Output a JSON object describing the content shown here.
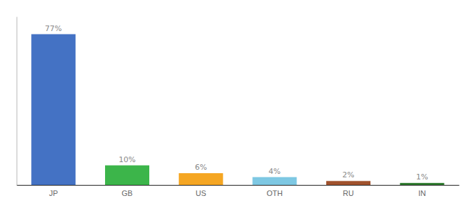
{
  "chart_data": {
    "type": "bar",
    "categories": [
      "JP",
      "GB",
      "US",
      "OTH",
      "RU",
      "IN"
    ],
    "values": [
      77,
      10,
      6,
      4,
      2,
      1
    ],
    "value_labels": [
      "77%",
      "10%",
      "6%",
      "4%",
      "2%",
      "1%"
    ],
    "colors": [
      "#4472C4",
      "#3CB54A",
      "#F5A623",
      "#7EC8E3",
      "#A0522D",
      "#2D7A2D"
    ],
    "ylim": [
      0,
      86
    ],
    "grid": false,
    "data_labels": true,
    "tick_labels": "x"
  }
}
